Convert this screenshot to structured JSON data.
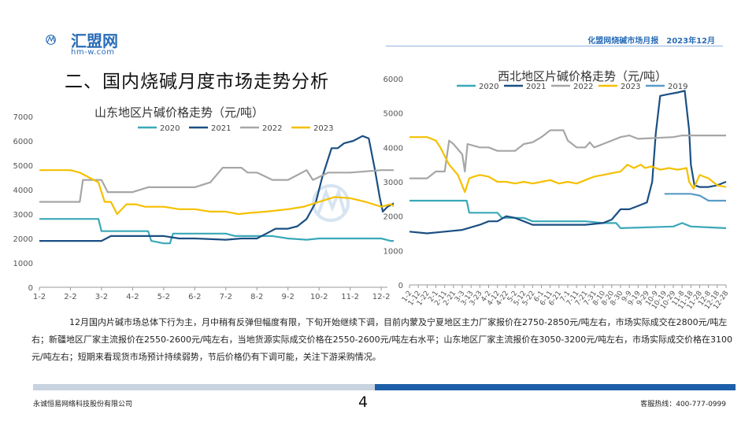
{
  "header": {
    "logo_text": "汇盟网",
    "logo_sub": "hm-w.com",
    "report_title": "化盟网烧碱市场月报　2023年12月"
  },
  "section_title": "二、国内烧碱月度市场走势分析",
  "body_text": "12月国内片碱市场总体下行为主，月中稍有反弹但幅度有限，下旬开始继续下调，目前内蒙及宁夏地区主力厂家报价在2750-2850元/吨左右，市场实际成交在2800元/吨左右；新疆地区厂家主流报价在2550-2600元/吨左右，当地货源实际成交价格在2550-2600元/吨左右水平；山东地区厂家主流报价在3050-3200元/吨左右，市场实际成交价格在3100元/吨左右；短期来看现货市场预计持续弱势，节后价格仍有下调可能，关注下游采购情况。",
  "footer": {
    "company": "永诚恒易网络科技股份有限公司",
    "page": "4",
    "hotline": "客服热线：400-777-0999"
  },
  "colors": {
    "c2020": "#3aa8b8",
    "c2021": "#1b4f82",
    "c2022": "#a6a6a6",
    "c2023": "#f5c000",
    "c2019": "#5a9bc7"
  },
  "chart_data": [
    {
      "type": "line",
      "title": "山东地区片碱价格走势（元/吨）",
      "x_ticks": [
        "1-2",
        "2-2",
        "3-2",
        "4-2",
        "5-2",
        "6-2",
        "7-2",
        "8-2",
        "9-2",
        "10-2",
        "11-2",
        "12-2"
      ],
      "ylim": [
        0,
        7000
      ],
      "y_ticks": [
        0,
        1000,
        2000,
        3000,
        4000,
        5000,
        6000,
        7000
      ],
      "legend": "top",
      "grid": false,
      "series": [
        {
          "name": "2020",
          "color_key": "c2020",
          "points": [
            [
              0,
              2800
            ],
            [
              1,
              2800
            ],
            [
              1.9,
              2800
            ],
            [
              2.0,
              2300
            ],
            [
              3,
              2300
            ],
            [
              3.5,
              2300
            ],
            [
              3.6,
              1900
            ],
            [
              4,
              1800
            ],
            [
              4.2,
              1800
            ],
            [
              4.3,
              2200
            ],
            [
              5,
              2200
            ],
            [
              6,
              2200
            ],
            [
              6.3,
              2100
            ],
            [
              7,
              2100
            ],
            [
              7.5,
              2100
            ],
            [
              8,
              2000
            ],
            [
              8.6,
              1950
            ],
            [
              9,
              2000
            ],
            [
              10,
              2000
            ],
            [
              11,
              2000
            ],
            [
              11.3,
              1900
            ],
            [
              12.2,
              1900
            ]
          ]
        },
        {
          "name": "2021",
          "color_key": "c2021",
          "points": [
            [
              0,
              1900
            ],
            [
              1,
              1900
            ],
            [
              2,
              1900
            ],
            [
              2.3,
              2100
            ],
            [
              3,
              2100
            ],
            [
              4,
              2100
            ],
            [
              4.5,
              2000
            ],
            [
              5,
              2000
            ],
            [
              6,
              1950
            ],
            [
              6.5,
              2000
            ],
            [
              7,
              2000
            ],
            [
              7.3,
              2200
            ],
            [
              7.6,
              2400
            ],
            [
              8,
              2400
            ],
            [
              8.3,
              2500
            ],
            [
              8.6,
              2800
            ],
            [
              8.9,
              3500
            ],
            [
              9.1,
              4500
            ],
            [
              9.4,
              5700
            ],
            [
              9.6,
              5700
            ],
            [
              9.8,
              5900
            ],
            [
              10.1,
              6000
            ],
            [
              10.4,
              6200
            ],
            [
              10.6,
              6100
            ],
            [
              10.8,
              4800
            ],
            [
              10.95,
              3700
            ],
            [
              11.05,
              3100
            ],
            [
              11.2,
              3300
            ],
            [
              11.5,
              3500
            ],
            [
              12.2,
              3500
            ]
          ]
        },
        {
          "name": "2022",
          "color_key": "c2022",
          "points": [
            [
              0,
              3500
            ],
            [
              1.3,
              3500
            ],
            [
              1.4,
              4400
            ],
            [
              2.0,
              4400
            ],
            [
              2.2,
              3900
            ],
            [
              3,
              3900
            ],
            [
              3.5,
              4100
            ],
            [
              5,
              4100
            ],
            [
              5.5,
              4300
            ],
            [
              5.9,
              4900
            ],
            [
              6.5,
              4900
            ],
            [
              6.7,
              4700
            ],
            [
              7,
              4700
            ],
            [
              7.5,
              4400
            ],
            [
              8,
              4400
            ],
            [
              8.3,
              4600
            ],
            [
              8.6,
              4800
            ],
            [
              8.8,
              4400
            ],
            [
              9.3,
              4700
            ],
            [
              10,
              4700
            ],
            [
              11,
              4800
            ],
            [
              12.2,
              4800
            ]
          ]
        },
        {
          "name": "2023",
          "color_key": "c2023",
          "points": [
            [
              0,
              4800
            ],
            [
              1,
              4800
            ],
            [
              1.3,
              4700
            ],
            [
              1.6,
              4500
            ],
            [
              1.9,
              4300
            ],
            [
              2.1,
              3500
            ],
            [
              2.3,
              3500
            ],
            [
              2.5,
              3000
            ],
            [
              2.8,
              3400
            ],
            [
              3.1,
              3400
            ],
            [
              3.4,
              3300
            ],
            [
              4,
              3300
            ],
            [
              4.5,
              3200
            ],
            [
              5,
              3200
            ],
            [
              5.5,
              3100
            ],
            [
              6,
              3100
            ],
            [
              6.4,
              3000
            ],
            [
              6.8,
              3050
            ],
            [
              7.3,
              3100
            ],
            [
              8,
              3200
            ],
            [
              8.5,
              3300
            ],
            [
              9,
              3500
            ],
            [
              9.5,
              3700
            ],
            [
              10,
              3650
            ],
            [
              10.5,
              3500
            ],
            [
              11,
              3300
            ],
            [
              11.3,
              3400
            ],
            [
              11.6,
              3200
            ],
            [
              12.2,
              3100
            ]
          ]
        }
      ]
    },
    {
      "type": "line",
      "title": "西北地区片碱价格走势（元/吨）",
      "x_ticks": [
        "1-2",
        "1-12",
        "1-22",
        "2-1",
        "2-11",
        "2-21",
        "3-3",
        "3-13",
        "3-23",
        "4-2",
        "4-12",
        "4-22",
        "5-2",
        "5-12",
        "5-22",
        "6-1",
        "6-11",
        "6-21",
        "7-1",
        "7-11",
        "7-21",
        "7-31",
        "8-10",
        "8-20",
        "8-30",
        "9-9",
        "9-19",
        "9-29",
        "10-9",
        "10-19",
        "10-29",
        "11-8",
        "11-18",
        "11-28",
        "12-8",
        "12-18",
        "12-28"
      ],
      "ylim": [
        0,
        6000
      ],
      "y_ticks": [
        0,
        1000,
        2000,
        3000,
        4000,
        5000,
        6000
      ],
      "legend": "top",
      "grid": false,
      "series": [
        {
          "name": "2020",
          "color_key": "c2020",
          "points": [
            [
              0,
              2450
            ],
            [
              6.5,
              2450
            ],
            [
              6.8,
              2100
            ],
            [
              10,
              2100
            ],
            [
              10.5,
              1950
            ],
            [
              13,
              1950
            ],
            [
              14,
              1850
            ],
            [
              20,
              1850
            ],
            [
              22,
              1800
            ],
            [
              23.5,
              1800
            ],
            [
              24,
              1650
            ],
            [
              30,
              1700
            ],
            [
              31,
              1800
            ],
            [
              32,
              1700
            ],
            [
              36,
              1650
            ]
          ]
        },
        {
          "name": "2021",
          "color_key": "c2021",
          "points": [
            [
              0,
              1550
            ],
            [
              2,
              1500
            ],
            [
              4,
              1550
            ],
            [
              6,
              1600
            ],
            [
              8,
              1750
            ],
            [
              9,
              1850
            ],
            [
              10,
              1850
            ],
            [
              11,
              2000
            ],
            [
              12,
              1950
            ],
            [
              13,
              1850
            ],
            [
              14,
              1750
            ],
            [
              17,
              1750
            ],
            [
              20,
              1750
            ],
            [
              22,
              1800
            ],
            [
              23,
              1900
            ],
            [
              24,
              2200
            ],
            [
              25,
              2200
            ],
            [
              26,
              2300
            ],
            [
              27,
              2400
            ],
            [
              27.6,
              3000
            ],
            [
              28,
              4400
            ],
            [
              28.5,
              5500
            ],
            [
              29.5,
              5550
            ],
            [
              30.5,
              5600
            ],
            [
              31.3,
              5650
            ],
            [
              31.8,
              4500
            ],
            [
              32,
              3500
            ],
            [
              32.4,
              2900
            ],
            [
              33,
              2850
            ],
            [
              34,
              2850
            ],
            [
              35,
              2900
            ],
            [
              36,
              3000
            ]
          ]
        },
        {
          "name": "2022",
          "color_key": "c2022",
          "points": [
            [
              0,
              3100
            ],
            [
              2,
              3100
            ],
            [
              3,
              3300
            ],
            [
              4,
              3300
            ],
            [
              4.5,
              4200
            ],
            [
              5,
              4100
            ],
            [
              6,
              3800
            ],
            [
              6.3,
              3300
            ],
            [
              6.6,
              4100
            ],
            [
              8,
              4000
            ],
            [
              9,
              4000
            ],
            [
              10,
              3900
            ],
            [
              12,
              3900
            ],
            [
              13,
              4100
            ],
            [
              14,
              4150
            ],
            [
              15,
              4300
            ],
            [
              16,
              4500
            ],
            [
              17.5,
              4500
            ],
            [
              18,
              4200
            ],
            [
              19,
              4000
            ],
            [
              20,
              4000
            ],
            [
              20.5,
              4150
            ],
            [
              21,
              4000
            ],
            [
              22,
              4100
            ],
            [
              23,
              4200
            ],
            [
              24,
              4300
            ],
            [
              25,
              4350
            ],
            [
              26,
              4250
            ],
            [
              30,
              4300
            ],
            [
              31,
              4350
            ],
            [
              36,
              4350
            ]
          ]
        },
        {
          "name": "2023",
          "color_key": "c2023",
          "points": [
            [
              0,
              4300
            ],
            [
              2,
              4300
            ],
            [
              3,
              4200
            ],
            [
              3.5,
              4000
            ],
            [
              4.5,
              3500
            ],
            [
              5.5,
              3200
            ],
            [
              6.3,
              2700
            ],
            [
              6.8,
              3100
            ],
            [
              7.3,
              3150
            ],
            [
              8,
              3200
            ],
            [
              9,
              3150
            ],
            [
              10,
              3000
            ],
            [
              11,
              3000
            ],
            [
              12,
              2950
            ],
            [
              13,
              3000
            ],
            [
              14,
              2950
            ],
            [
              15,
              3000
            ],
            [
              16,
              3050
            ],
            [
              17,
              2950
            ],
            [
              18,
              3000
            ],
            [
              19,
              2950
            ],
            [
              20,
              3050
            ],
            [
              21,
              3150
            ],
            [
              22,
              3200
            ],
            [
              23,
              3250
            ],
            [
              24,
              3300
            ],
            [
              24.8,
              3500
            ],
            [
              25.5,
              3400
            ],
            [
              26.3,
              3500
            ],
            [
              26.8,
              3400
            ],
            [
              27.5,
              3450
            ],
            [
              28.5,
              3350
            ],
            [
              29.5,
              3400
            ],
            [
              30.5,
              3350
            ],
            [
              31.5,
              3400
            ],
            [
              31.8,
              3000
            ],
            [
              32.3,
              2800
            ],
            [
              33,
              3200
            ],
            [
              34,
              3100
            ],
            [
              35,
              2900
            ],
            [
              36,
              2850
            ]
          ]
        },
        {
          "name": "2019",
          "color_key": "c2019",
          "points": [
            [
              29,
              2650
            ],
            [
              32,
              2650
            ],
            [
              33,
              2600
            ],
            [
              34,
              2450
            ],
            [
              36,
              2450
            ]
          ]
        }
      ]
    }
  ]
}
